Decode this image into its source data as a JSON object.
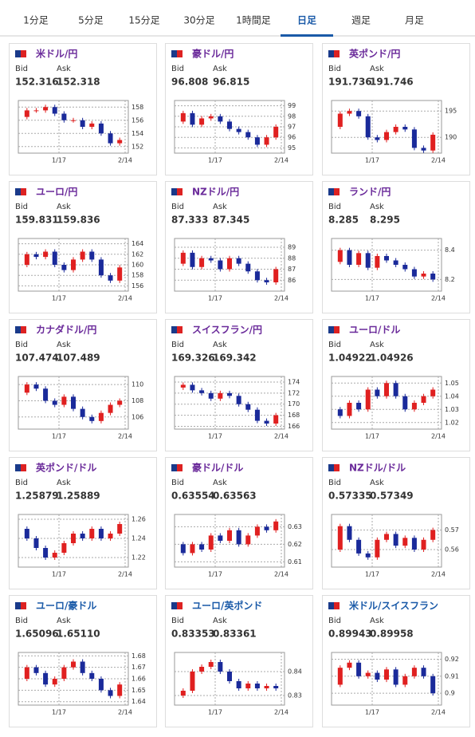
{
  "tabs": [
    "1分足",
    "5分足",
    "15分足",
    "30分足",
    "1時間足",
    "日足",
    "週足",
    "月足"
  ],
  "active_tab": 5,
  "bid_label": "Bid",
  "ask_label": "Ask",
  "x_labels": [
    "1/17",
    "2/14"
  ],
  "cards": [
    {
      "name": "米ドル/円",
      "name_color": "#6a2a9a",
      "bid": "152.316",
      "ask": "152.318",
      "ylim": [
        151,
        159
      ],
      "yticks": [
        158,
        156,
        154,
        152
      ],
      "close": [
        156.5,
        157.5,
        157.5,
        158,
        157,
        156,
        156,
        155,
        155.5,
        154,
        152.5,
        153
      ]
    },
    {
      "name": "豪ドル/円",
      "name_color": "#6a2a9a",
      "bid": "96.808",
      "ask": "96.815",
      "ylim": [
        94.5,
        99.5
      ],
      "yticks": [
        99,
        98,
        97,
        96,
        95
      ],
      "close": [
        97.5,
        98.3,
        97.2,
        97.8,
        98,
        97.5,
        96.8,
        96.5,
        96,
        95.3,
        96,
        97
      ]
    },
    {
      "name": "英ポンド/円",
      "name_color": "#6a2a9a",
      "bid": "191.736",
      "ask": "191.746",
      "ylim": [
        187,
        197
      ],
      "yticks": [
        195,
        190
      ],
      "close": [
        192,
        194.5,
        195,
        194,
        190,
        189.5,
        191,
        192,
        191.5,
        188,
        187.5,
        190.5
      ]
    },
    {
      "name": "ユーロ/円",
      "name_color": "#6a2a9a",
      "bid": "159.831",
      "ask": "159.836",
      "ylim": [
        155,
        165
      ],
      "yticks": [
        164,
        162,
        160,
        158,
        156
      ],
      "close": [
        160,
        162,
        161.5,
        162.5,
        160,
        159,
        161,
        162.5,
        161,
        158,
        157,
        159.5
      ]
    },
    {
      "name": "NZドル/円",
      "name_color": "#6a2a9a",
      "bid": "87.333",
      "ask": "87.345",
      "ylim": [
        85,
        89.8
      ],
      "yticks": [
        89,
        88,
        87,
        86
      ],
      "close": [
        87.5,
        88.5,
        87.2,
        88,
        87.8,
        87,
        88,
        87.5,
        86.8,
        86,
        85.8,
        87
      ]
    },
    {
      "name": "ランド/円",
      "name_color": "#6a2a9a",
      "bid": "8.285",
      "ask": "8.295",
      "ylim": [
        8.12,
        8.48
      ],
      "yticks": [
        8.4,
        8.2
      ],
      "close": [
        8.32,
        8.4,
        8.3,
        8.38,
        8.28,
        8.36,
        8.33,
        8.3,
        8.27,
        8.22,
        8.24,
        8.2
      ]
    },
    {
      "name": "カナダドル/円",
      "name_color": "#6a2a9a",
      "bid": "107.474",
      "ask": "107.489",
      "ylim": [
        104.5,
        111
      ],
      "yticks": [
        110,
        108,
        106
      ],
      "close": [
        109,
        110,
        109.5,
        108,
        107.5,
        108.5,
        107,
        106,
        105.5,
        106.5,
        107.5,
        108
      ]
    },
    {
      "name": "スイスフラン/円",
      "name_color": "#6a2a9a",
      "bid": "169.326",
      "ask": "169.342",
      "ylim": [
        165.5,
        175
      ],
      "yticks": [
        174,
        172,
        170,
        168,
        166
      ],
      "close": [
        173,
        173.5,
        172.5,
        172,
        171,
        172,
        171.5,
        170,
        169,
        167,
        166.5,
        168
      ]
    },
    {
      "name": "ユーロ/ドル",
      "name_color": "#6a2a9a",
      "bid": "1.04922",
      "ask": "1.04926",
      "ylim": [
        1.015,
        1.055
      ],
      "yticks": [
        1.05,
        1.04,
        1.03,
        1.02
      ],
      "close": [
        1.03,
        1.025,
        1.035,
        1.03,
        1.045,
        1.04,
        1.05,
        1.04,
        1.03,
        1.035,
        1.04,
        1.045
      ]
    },
    {
      "name": "英ポンド/ドル",
      "name_color": "#6a2a9a",
      "bid": "1.25879",
      "ask": "1.25889",
      "ylim": [
        1.21,
        1.265
      ],
      "yticks": [
        1.26,
        1.24,
        1.22
      ],
      "close": [
        1.25,
        1.24,
        1.23,
        1.22,
        1.225,
        1.235,
        1.245,
        1.24,
        1.25,
        1.24,
        1.245,
        1.255
      ]
    },
    {
      "name": "豪ドル/ドル",
      "name_color": "#6a2a9a",
      "bid": "0.63554",
      "ask": "0.63563",
      "ylim": [
        0.607,
        0.637
      ],
      "yticks": [
        0.63,
        0.62,
        0.61
      ],
      "close": [
        0.62,
        0.615,
        0.62,
        0.617,
        0.625,
        0.622,
        0.628,
        0.62,
        0.625,
        0.63,
        0.628,
        0.633
      ]
    },
    {
      "name": "NZドル/ドル",
      "name_color": "#6a2a9a",
      "bid": "0.57335",
      "ask": "0.57349",
      "ylim": [
        0.551,
        0.578
      ],
      "yticks": [
        0.57,
        0.56
      ],
      "close": [
        0.56,
        0.572,
        0.565,
        0.558,
        0.556,
        0.565,
        0.568,
        0.562,
        0.566,
        0.56,
        0.565,
        0.57
      ]
    },
    {
      "name": "ユーロ/豪ドル",
      "name_color": "#1a5aa8",
      "bid": "1.65096",
      "ask": "1.65110",
      "ylim": [
        1.637,
        1.683
      ],
      "yticks": [
        1.68,
        1.67,
        1.66,
        1.65,
        1.64
      ],
      "close": [
        1.66,
        1.67,
        1.665,
        1.655,
        1.66,
        1.67,
        1.675,
        1.665,
        1.66,
        1.65,
        1.645,
        1.655
      ]
    },
    {
      "name": "ユーロ/英ポンド",
      "name_color": "#1a5aa8",
      "bid": "0.83353",
      "ask": "0.83361",
      "ylim": [
        0.826,
        0.848
      ],
      "yticks": [
        0.84,
        0.83
      ],
      "close": [
        0.83,
        0.832,
        0.84,
        0.842,
        0.844,
        0.84,
        0.836,
        0.833,
        0.835,
        0.833,
        0.834,
        0.833
      ]
    },
    {
      "name": "米ドル/スイスフラン",
      "name_color": "#1a5aa8",
      "bid": "0.89943",
      "ask": "0.89958",
      "ylim": [
        0.893,
        0.924
      ],
      "yticks": [
        0.92,
        0.91,
        0.9
      ],
      "close": [
        0.905,
        0.915,
        0.918,
        0.91,
        0.912,
        0.908,
        0.914,
        0.905,
        0.91,
        0.915,
        0.91,
        0.9
      ]
    }
  ]
}
